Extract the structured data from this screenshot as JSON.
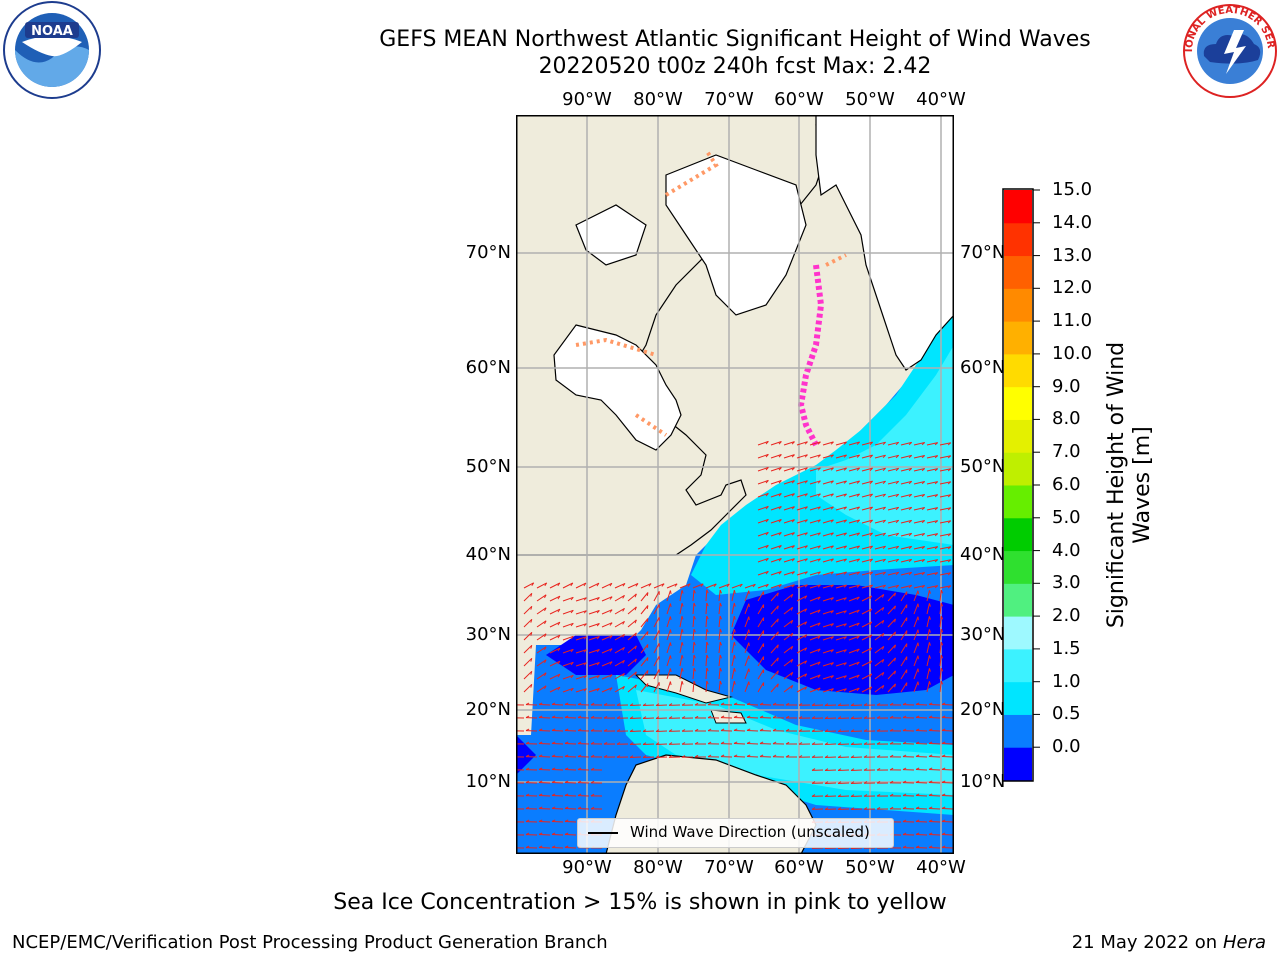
{
  "title_line1": "GEFS MEAN Northwest Atlantic Significant Height of Wind Waves",
  "title_line2": "20220520 t00z 240h fcst   Max: 2.42",
  "logos": {
    "left": {
      "icon": "noaa-logo",
      "text": "NOAA",
      "ring_text": "NATIONAL OCEANIC AND ATMOSPHERIC ADMINISTRATION · U.S. DEPARTMENT OF COMMERCE"
    },
    "right": {
      "icon": "nws-logo",
      "ring_text": "NATIONAL WEATHER SERVICE"
    }
  },
  "map": {
    "lon_labels": [
      "90°W",
      "80°W",
      "70°W",
      "60°W",
      "50°W",
      "40°W"
    ],
    "lat_labels": [
      "70°N",
      "60°N",
      "50°N",
      "40°N",
      "30°N",
      "20°N",
      "10°N"
    ],
    "land_color": "#efecdc",
    "ice_land_color": "#ffffff",
    "grid_color": "#b0b0b0",
    "arrow_color": "#e8241e",
    "sea_ice_colors": [
      "#ff33cc",
      "#ff9966",
      "#ffd700"
    ],
    "legend_label": "Wind Wave Direction (unscaled)"
  },
  "colorbar": {
    "label": "Significant Height of Wind Waves [m]",
    "ticks": [
      "15.0",
      "14.0",
      "13.0",
      "12.0",
      "11.0",
      "10.0",
      "9.0",
      "8.0",
      "7.0",
      "6.0",
      "5.0",
      "4.0",
      "3.0",
      "2.0",
      "1.5",
      "1.0",
      "0.5",
      "0.0"
    ],
    "colors": [
      "#0000ff",
      "#0a7dff",
      "#00e5ff",
      "#3cf2ff",
      "#9ef9ff",
      "#50f080",
      "#2fe02f",
      "#00cc00",
      "#66ee00",
      "#bfef00",
      "#e4f000",
      "#ffff00",
      "#ffdb00",
      "#ffb000",
      "#ff8a00",
      "#ff6000",
      "#ff3200",
      "#ff0000"
    ]
  },
  "footnote": "Sea Ice Concentration > 15% is shown in pink to yellow",
  "credit_left": "NCEP/EMC/Verification Post Processing Product Generation Branch",
  "credit_right_date": "21 May 2022 on",
  "credit_right_machine": "Hera"
}
